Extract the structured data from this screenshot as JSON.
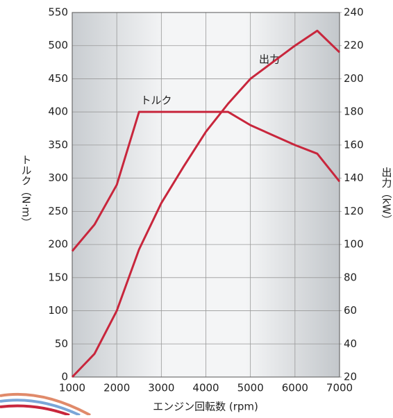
{
  "chart_data": {
    "type": "line",
    "annotations": [
      "トルク",
      "出力"
    ],
    "x_label": "エンジン回転数 (rpm)",
    "y_label": "トルク（N·m）",
    "y2_label": "出力（kW）",
    "x": [
      1000,
      1500,
      2000,
      2500,
      3000,
      3500,
      4000,
      4500,
      5000,
      5500,
      6000,
      6500,
      7000
    ],
    "series": [
      {
        "name": "トルク",
        "color": "#c8263c",
        "values": [
          190,
          230,
          290,
          400,
          400,
          400,
          400,
          400,
          380,
          365,
          350,
          337,
          295
        ]
      },
      {
        "name": "出力",
        "color": "#c8263c",
        "axis": "y2",
        "values": [
          20,
          34,
          60,
          97,
          125,
          147,
          168,
          185,
          200,
          210,
          220,
          229,
          216
        ]
      }
    ],
    "xlim": [
      1000,
      7000
    ],
    "xticks": [
      1000,
      2000,
      3000,
      4000,
      5000,
      6000,
      7000
    ],
    "ylim": [
      0,
      550
    ],
    "yticks": [
      0,
      50,
      100,
      150,
      200,
      250,
      300,
      350,
      400,
      450,
      500,
      550
    ],
    "y2lim": [
      20,
      240
    ],
    "y2ticks": [
      20,
      40,
      60,
      80,
      100,
      120,
      140,
      160,
      180,
      200,
      220,
      240
    ],
    "grid": true
  }
}
